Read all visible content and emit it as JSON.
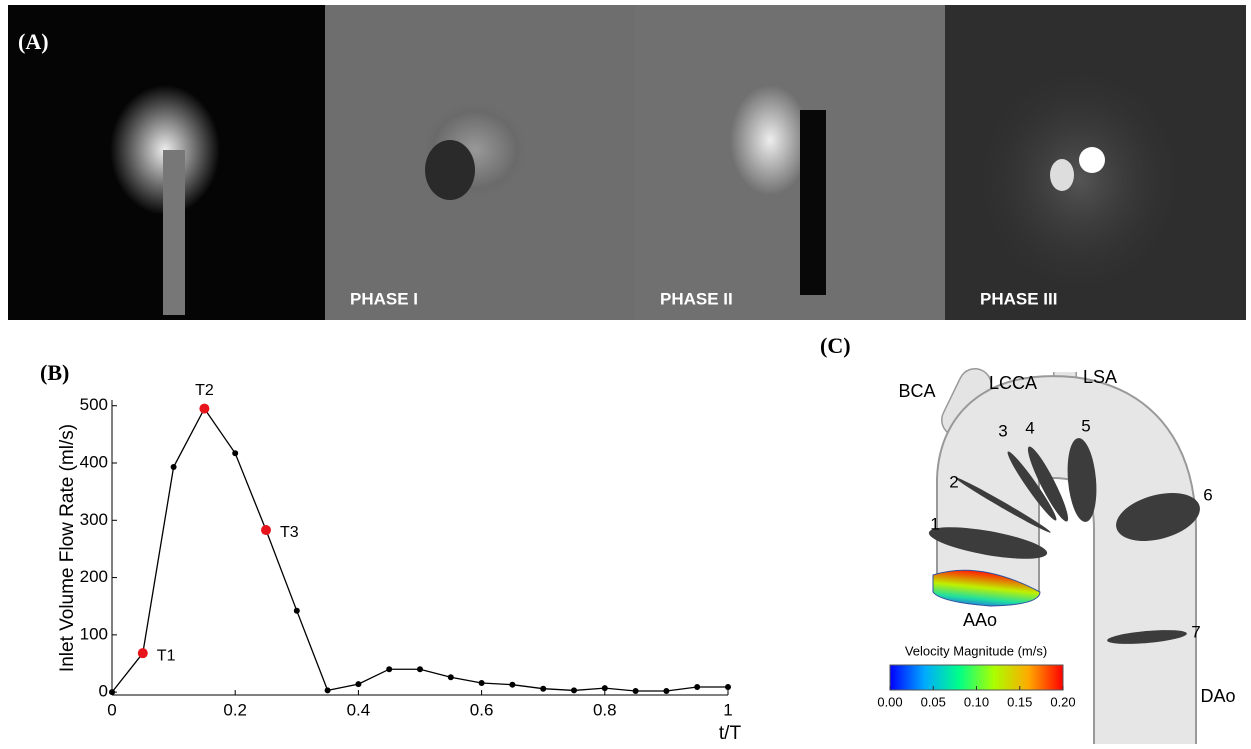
{
  "panel_a": {
    "label": "(A)",
    "captions": [
      "PHASE I",
      "PHASE II",
      "PHASE III"
    ]
  },
  "chart_data": {
    "type": "line",
    "panel_label": "(B)",
    "x_label": "t/T",
    "y_label": "Inlet Volume Flow Rate (ml/s)",
    "x": [
      0,
      0.05,
      0.1,
      0.15,
      0.2,
      0.25,
      0.3,
      0.35,
      0.4,
      0.45,
      0.5,
      0.55,
      0.6,
      0.65,
      0.7,
      0.75,
      0.8,
      0.85,
      0.9,
      0.95,
      1
    ],
    "values": [
      0,
      68,
      393,
      495,
      417,
      283,
      142,
      3,
      14,
      40,
      40,
      26,
      16,
      13,
      6,
      3,
      7,
      2,
      2,
      9,
      9
    ],
    "color": "#000000",
    "highlight_color": "#e8141b",
    "annotations": [
      {
        "text": "T1",
        "x": 0.05
      },
      {
        "text": "T2",
        "x": 0.15
      },
      {
        "text": "T3",
        "x": 0.25
      }
    ],
    "xlim": [
      0,
      1
    ],
    "ylim": [
      -5,
      510
    ],
    "xticks": [
      0,
      0.2,
      0.4,
      0.6,
      0.8,
      1
    ],
    "yticks": [
      0,
      100,
      200,
      300,
      400,
      500
    ]
  },
  "panel_c": {
    "label": "(C)",
    "vessel_labels": [
      "BCA",
      "LCCA",
      "LSA",
      "AAo",
      "DAo"
    ],
    "plane_labels": [
      "1",
      "2",
      "3",
      "4",
      "5",
      "6",
      "7"
    ],
    "colorbar": {
      "title": "Velocity Magnitude (m/s)",
      "lim": [
        0,
        0.2
      ],
      "ticks": [
        {
          "value": 0,
          "label": "0.00"
        },
        {
          "value": 0.05,
          "label": "0.05"
        },
        {
          "value": 0.1,
          "label": "0.10"
        },
        {
          "value": 0.15,
          "label": "0.15"
        },
        {
          "value": 0.2,
          "label": "0.20"
        }
      ],
      "colors": [
        "#0000ff",
        "#00aaff",
        "#00ff88",
        "#aaff00",
        "#ffaa00",
        "#ff0000"
      ]
    }
  }
}
